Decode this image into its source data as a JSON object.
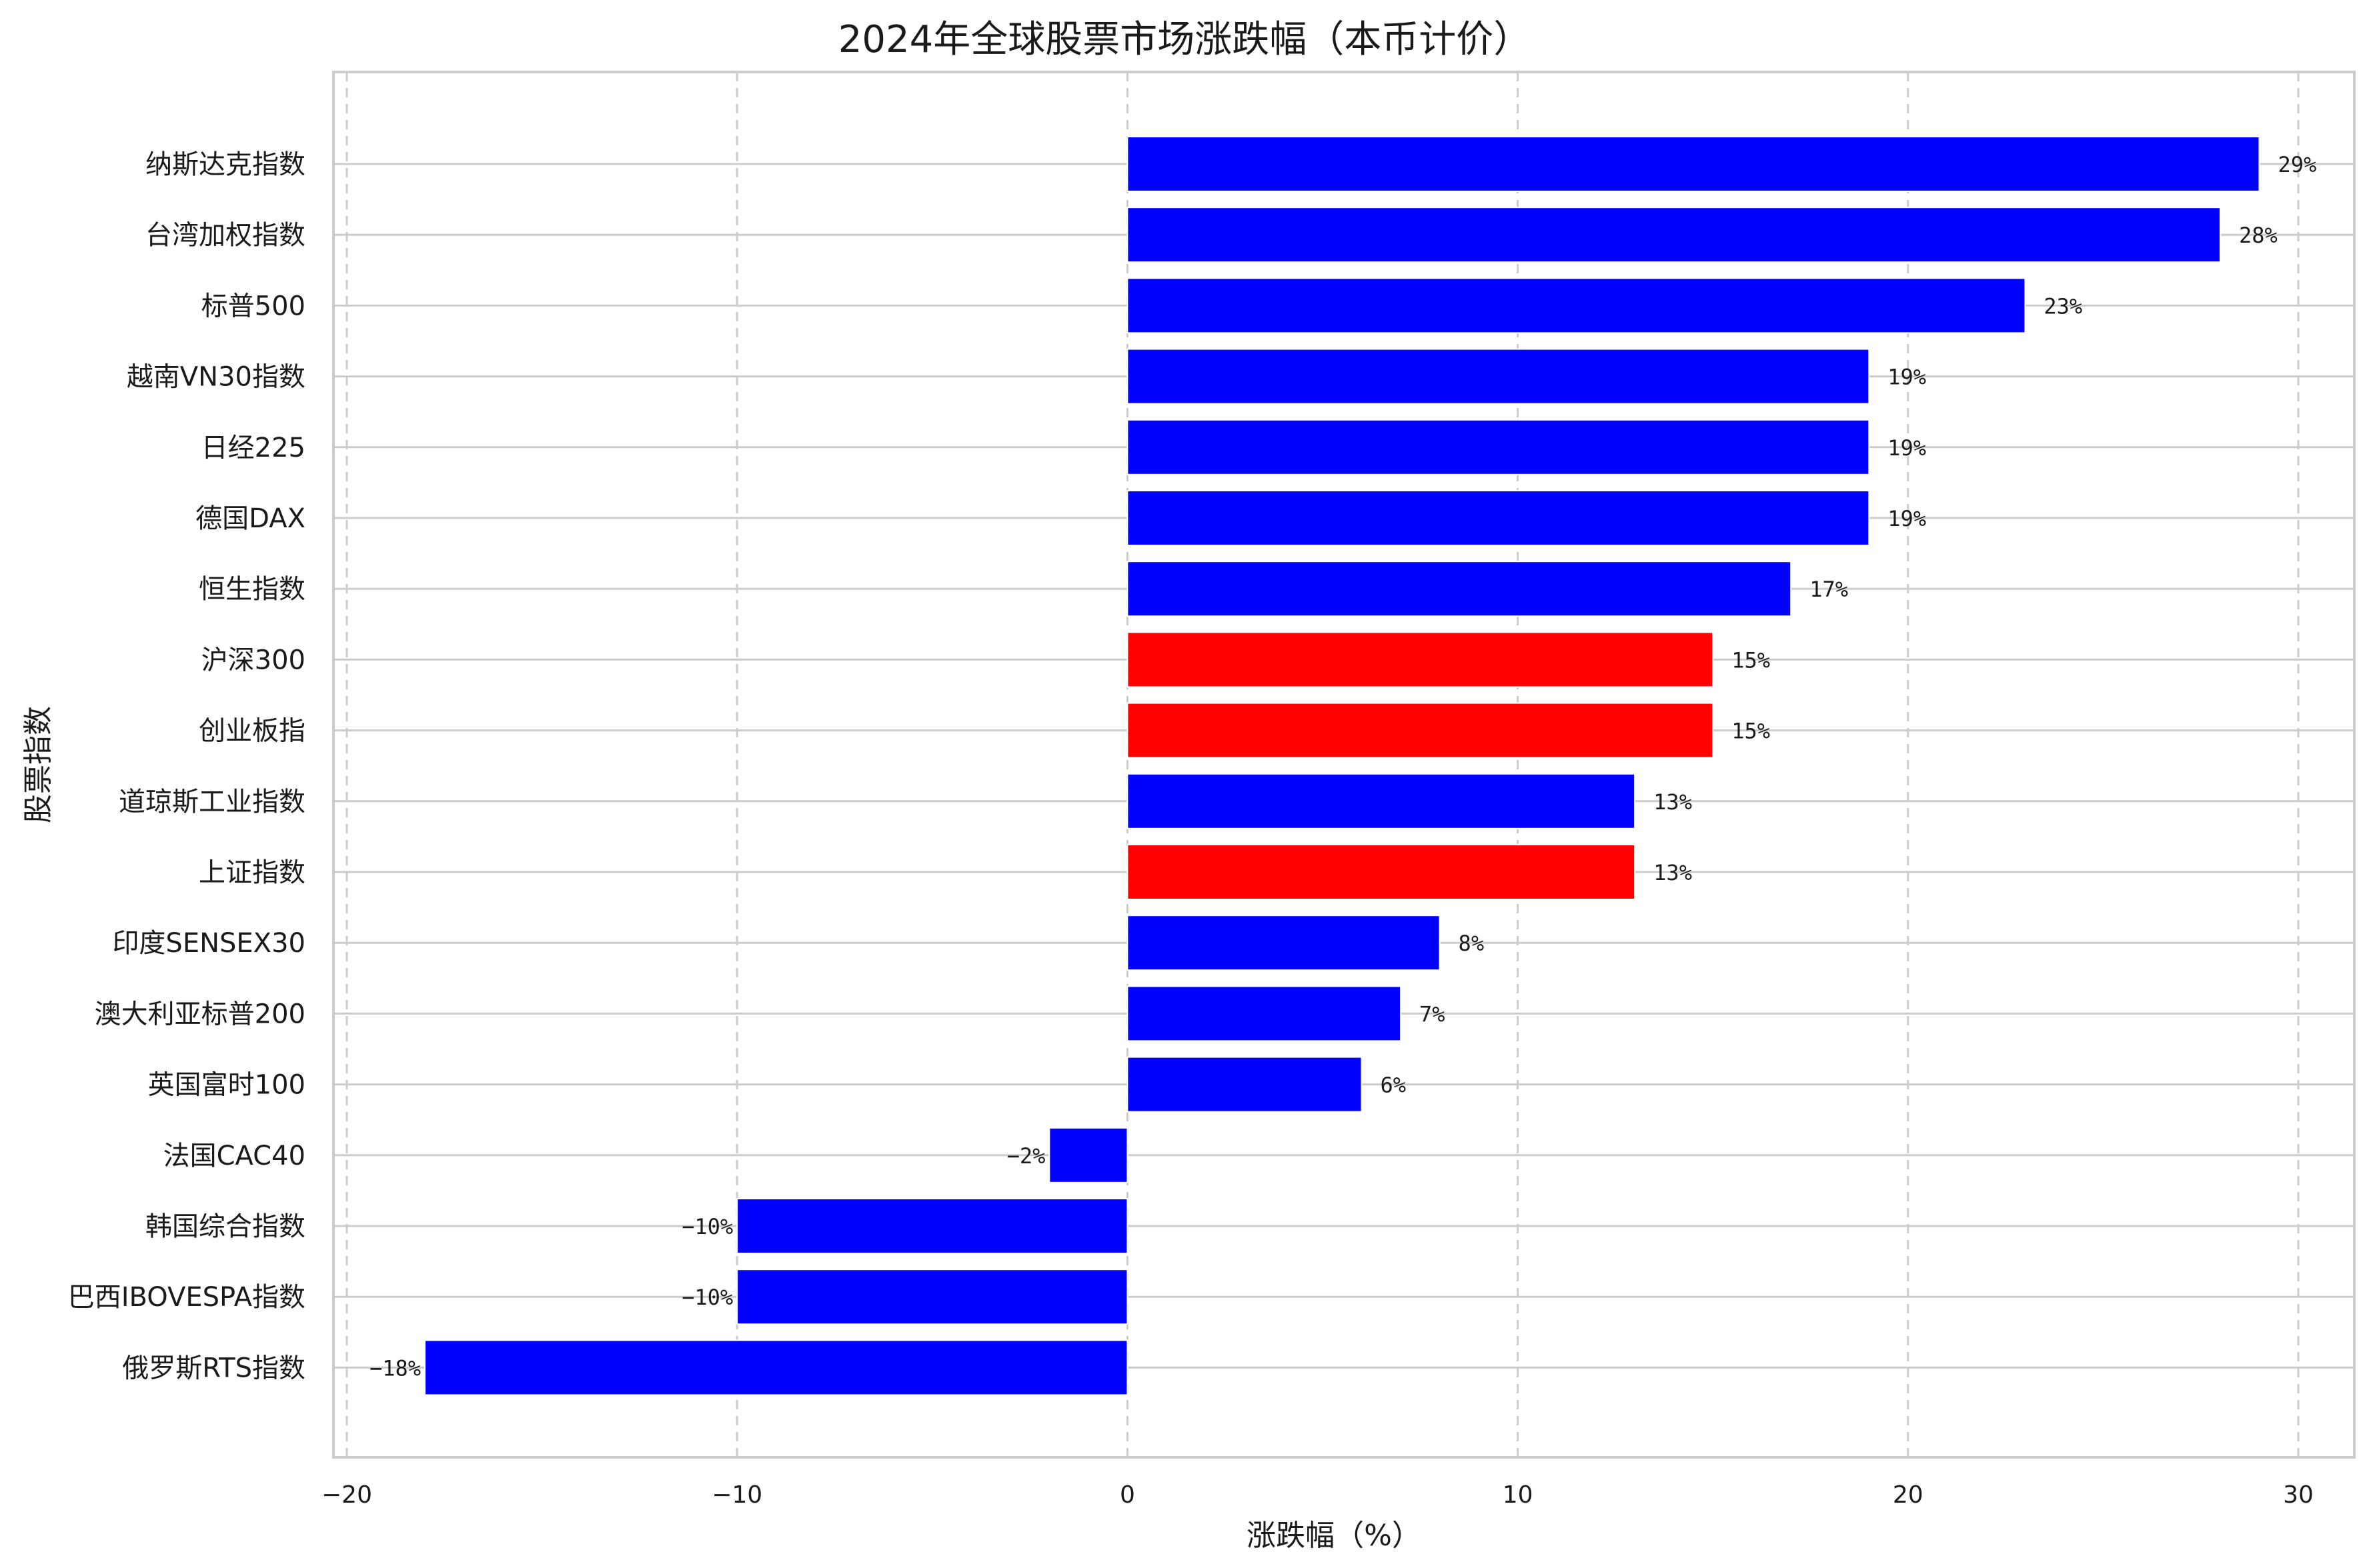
{
  "chart_data": {
    "type": "bar",
    "orientation": "horizontal",
    "title": "2024年全球股票市场涨跌幅（本币计价）",
    "xlabel": "涨跌幅（%）",
    "ylabel": "股票指数",
    "xlim": [
      -20,
      30
    ],
    "xticks": [
      -20,
      -10,
      0,
      10,
      20,
      30
    ],
    "grid": "on",
    "colors": {
      "blue": "#0000ff",
      "red": "#ff0000"
    },
    "bars": [
      {
        "label": "纳斯达克指数",
        "value": 29,
        "value_label": "29%",
        "color": "blue"
      },
      {
        "label": "台湾加权指数",
        "value": 28,
        "value_label": "28%",
        "color": "blue"
      },
      {
        "label": "标普500",
        "value": 23,
        "value_label": "23%",
        "color": "blue"
      },
      {
        "label": "越南VN30指数",
        "value": 19,
        "value_label": "19%",
        "color": "blue"
      },
      {
        "label": "日经225",
        "value": 19,
        "value_label": "19%",
        "color": "blue"
      },
      {
        "label": "德国DAX",
        "value": 19,
        "value_label": "19%",
        "color": "blue"
      },
      {
        "label": "恒生指数",
        "value": 17,
        "value_label": "17%",
        "color": "blue"
      },
      {
        "label": "沪深300",
        "value": 15,
        "value_label": "15%",
        "color": "red"
      },
      {
        "label": "创业板指",
        "value": 15,
        "value_label": "15%",
        "color": "red"
      },
      {
        "label": "道琼斯工业指数",
        "value": 13,
        "value_label": "13%",
        "color": "blue"
      },
      {
        "label": "上证指数",
        "value": 13,
        "value_label": "13%",
        "color": "red"
      },
      {
        "label": "印度SENSEX30",
        "value": 8,
        "value_label": "8%",
        "color": "blue"
      },
      {
        "label": "澳大利亚标普200",
        "value": 7,
        "value_label": "7%",
        "color": "blue"
      },
      {
        "label": "英国富时100",
        "value": 6,
        "value_label": "6%",
        "color": "blue"
      },
      {
        "label": "法国CAC40",
        "value": -2,
        "value_label": "-2%",
        "color": "blue"
      },
      {
        "label": "韩国综合指数",
        "value": -10,
        "value_label": "-10%",
        "color": "blue"
      },
      {
        "label": "巴西IBOVESPA指数",
        "value": -10,
        "value_label": "-10%",
        "color": "blue"
      },
      {
        "label": "俄罗斯RTS指数",
        "value": -18,
        "value_label": "-18%",
        "color": "blue"
      }
    ]
  }
}
